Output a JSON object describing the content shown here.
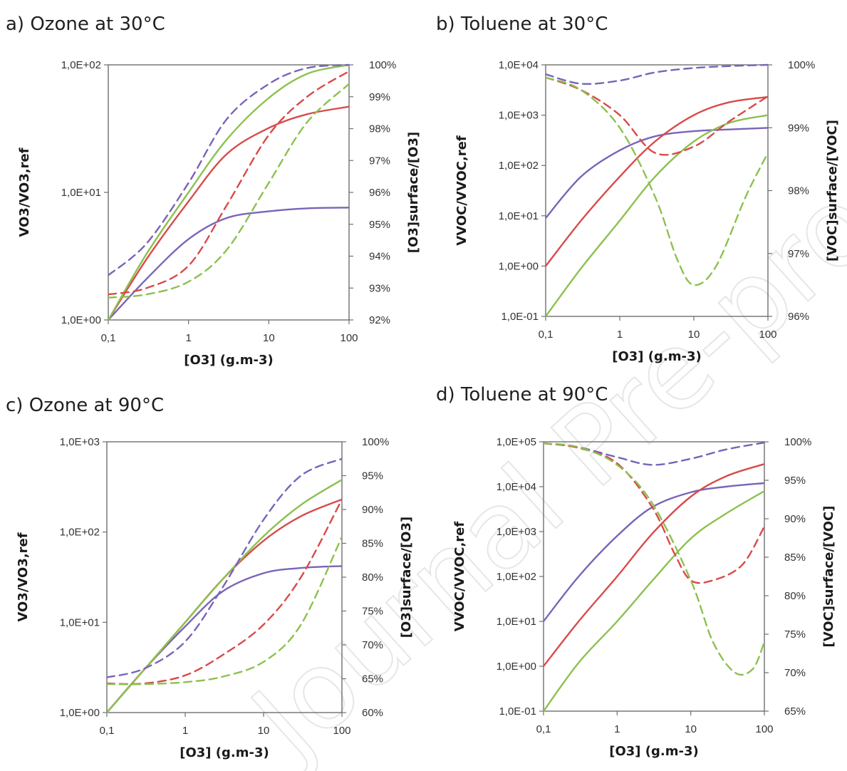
{
  "watermark": "Journal Pre-proof",
  "series_colors": {
    "purple": "#7a64b8",
    "red": "#d94a4a",
    "green": "#8cc14f"
  },
  "chart_data": [
    {
      "id": "a",
      "type": "line",
      "title": "a) Ozone at 30°C",
      "xlabel": "[O3] (g.m-3)",
      "ylabel_left": "VO3/VO3,ref",
      "ylabel_right": "[O3]surface/[O3]",
      "xscale": "log",
      "xlim": [
        0.1,
        100
      ],
      "xticks": [
        "0,1",
        "1",
        "10",
        "100"
      ],
      "yscale": "log",
      "ylim": [
        1,
        100
      ],
      "yticks": [
        "1,0E+00",
        "1,0E+01",
        "1,0E+02"
      ],
      "y2lim": [
        92,
        100
      ],
      "y2ticks": [
        "92%",
        "93%",
        "94%",
        "95%",
        "96%",
        "97%",
        "98%",
        "99%",
        "100%"
      ],
      "series": [
        {
          "color": "purple",
          "style": "solid",
          "axis": "left",
          "x": [
            0.1,
            0.3,
            1,
            3,
            10,
            30,
            100
          ],
          "y": [
            1.0,
            2.1,
            4.3,
            6.3,
            7.1,
            7.5,
            7.6
          ]
        },
        {
          "color": "red",
          "style": "solid",
          "axis": "left",
          "x": [
            0.1,
            0.3,
            1,
            3,
            10,
            30,
            100
          ],
          "y": [
            1.0,
            3.0,
            8.5,
            20,
            32,
            41,
            47
          ]
        },
        {
          "color": "green",
          "style": "solid",
          "axis": "left",
          "x": [
            0.1,
            0.3,
            1,
            3,
            10,
            30,
            100
          ],
          "y": [
            1.0,
            3.3,
            10,
            26,
            55,
            85,
            100
          ]
        },
        {
          "color": "purple",
          "style": "dashed",
          "axis": "right",
          "x": [
            0.1,
            0.3,
            1,
            3,
            10,
            30,
            100
          ],
          "y": [
            93.4,
            94.4,
            96.3,
            98.3,
            99.4,
            99.9,
            100
          ]
        },
        {
          "color": "red",
          "style": "dashed",
          "axis": "right",
          "x": [
            0.1,
            0.3,
            1,
            3,
            10,
            30,
            100
          ],
          "y": [
            92.8,
            93.0,
            93.7,
            95.6,
            97.8,
            99.0,
            99.8
          ]
        },
        {
          "color": "green",
          "style": "dashed",
          "axis": "right",
          "x": [
            0.1,
            0.3,
            1,
            3,
            10,
            30,
            100
          ],
          "y": [
            92.7,
            92.8,
            93.2,
            94.2,
            96.3,
            98.2,
            99.4
          ]
        }
      ]
    },
    {
      "id": "b",
      "type": "line",
      "title": "b) Toluene at 30°C",
      "xlabel": "[O3] (g.m-3)",
      "ylabel_left": "VVOC/VVOC,ref",
      "ylabel_right": "[VOC]surface/[VOC]",
      "xscale": "log",
      "xlim": [
        0.1,
        100
      ],
      "xticks": [
        "0,1",
        "1",
        "10",
        "100"
      ],
      "yscale": "log",
      "ylim": [
        0.1,
        10000
      ],
      "yticks": [
        "1,0E-01",
        "1,0E+00",
        "1,0E+01",
        "1,0E+02",
        "1,0E+03",
        "1,0E+04"
      ],
      "y2lim": [
        96,
        100
      ],
      "y2ticks": [
        "96%",
        "97%",
        "98%",
        "99%",
        "100%"
      ],
      "series": [
        {
          "color": "purple",
          "style": "solid",
          "axis": "left",
          "x": [
            0.1,
            0.3,
            1,
            3,
            10,
            30,
            100
          ],
          "y": [
            9,
            60,
            200,
            380,
            480,
            520,
            560
          ]
        },
        {
          "color": "red",
          "style": "solid",
          "axis": "left",
          "x": [
            0.1,
            0.3,
            1,
            3,
            10,
            30,
            100
          ],
          "y": [
            1.0,
            8,
            60,
            300,
            1000,
            1800,
            2300
          ]
        },
        {
          "color": "green",
          "style": "solid",
          "axis": "left",
          "x": [
            0.1,
            0.3,
            1,
            3,
            10,
            30,
            100
          ],
          "y": [
            0.1,
            0.9,
            8,
            60,
            300,
            700,
            1000
          ]
        },
        {
          "color": "purple",
          "style": "dashed",
          "axis": "right",
          "x": [
            0.1,
            0.3,
            1,
            3,
            10,
            30,
            100
          ],
          "y": [
            99.85,
            99.7,
            99.75,
            99.88,
            99.95,
            99.98,
            100
          ]
        },
        {
          "color": "red",
          "style": "dashed",
          "axis": "right",
          "x": [
            0.1,
            0.3,
            1,
            3,
            10,
            30,
            100
          ],
          "y": [
            99.8,
            99.6,
            99.2,
            98.6,
            98.7,
            99.1,
            99.5
          ]
        },
        {
          "color": "green",
          "style": "dashed",
          "axis": "right",
          "x": [
            0.1,
            0.3,
            1,
            3,
            6,
            10,
            20,
            50,
            100
          ],
          "y": [
            99.8,
            99.6,
            99.0,
            97.9,
            96.9,
            96.5,
            96.8,
            97.9,
            98.6
          ]
        }
      ]
    },
    {
      "id": "c",
      "type": "line",
      "title": "c) Ozone at 90°C",
      "xlabel": "[O3] (g.m-3)",
      "ylabel_left": "VO3/VO3,ref",
      "ylabel_right": "[O3]surface/[O3]",
      "xscale": "log",
      "xlim": [
        0.1,
        100
      ],
      "xticks": [
        "0,1",
        "1",
        "10",
        "100"
      ],
      "yscale": "log",
      "ylim": [
        1,
        1000
      ],
      "yticks": [
        "1,0E+00",
        "1,0E+01",
        "1,0E+02",
        "1,0E+03"
      ],
      "y2lim": [
        60,
        100
      ],
      "y2ticks": [
        "60%",
        "65%",
        "70%",
        "75%",
        "80%",
        "85%",
        "90%",
        "95%",
        "100%"
      ],
      "series": [
        {
          "color": "purple",
          "style": "solid",
          "axis": "left",
          "x": [
            0.1,
            0.3,
            1,
            3,
            10,
            30,
            100
          ],
          "y": [
            1.0,
            3,
            9,
            22,
            35,
            40,
            42
          ]
        },
        {
          "color": "red",
          "style": "solid",
          "axis": "left",
          "x": [
            0.1,
            0.3,
            1,
            3,
            10,
            30,
            100
          ],
          "y": [
            1.0,
            3,
            10,
            30,
            80,
            150,
            230
          ]
        },
        {
          "color": "green",
          "style": "solid",
          "axis": "left",
          "x": [
            0.1,
            0.3,
            1,
            3,
            10,
            30,
            100
          ],
          "y": [
            1.0,
            3,
            10,
            30,
            90,
            200,
            380
          ]
        },
        {
          "color": "purple",
          "style": "dashed",
          "axis": "right",
          "x": [
            0.1,
            0.3,
            1,
            3,
            10,
            30,
            100
          ],
          "y": [
            65.2,
            66.5,
            70.5,
            78.5,
            88.5,
            95,
            97.5
          ]
        },
        {
          "color": "red",
          "style": "dashed",
          "axis": "right",
          "x": [
            0.1,
            0.3,
            1,
            3,
            10,
            30,
            100
          ],
          "y": [
            64.3,
            64.3,
            65.5,
            68.5,
            73,
            80,
            91.5
          ]
        },
        {
          "color": "green",
          "style": "dashed",
          "axis": "right",
          "x": [
            0.1,
            0.3,
            1,
            3,
            10,
            30,
            100
          ],
          "y": [
            64.2,
            64.2,
            64.5,
            65.3,
            67.5,
            73,
            86
          ]
        }
      ]
    },
    {
      "id": "d",
      "type": "line",
      "title": "d) Toluene at 90°C",
      "xlabel": "[O3] (g.m-3)",
      "ylabel_left": "VVOC/VVOC,ref",
      "ylabel_right": "[VOC]surface/[VOC]",
      "xscale": "log",
      "xlim": [
        0.1,
        100
      ],
      "xticks": [
        "0,1",
        "1",
        "10",
        "100"
      ],
      "yscale": "log",
      "ylim": [
        0.1,
        100000
      ],
      "yticks": [
        "1,0E-01",
        "1,0E+00",
        "1,0E+01",
        "1,0E+02",
        "1,0E+03",
        "1,0E+04",
        "1,0E+05"
      ],
      "y2lim": [
        65,
        100
      ],
      "y2ticks": [
        "65%",
        "70%",
        "75%",
        "80%",
        "85%",
        "90%",
        "95%",
        "100%"
      ],
      "series": [
        {
          "color": "purple",
          "style": "solid",
          "axis": "left",
          "x": [
            0.1,
            0.3,
            1,
            3,
            10,
            30,
            100
          ],
          "y": [
            10,
            100,
            800,
            3500,
            7500,
            10000,
            12000
          ]
        },
        {
          "color": "red",
          "style": "solid",
          "axis": "left",
          "x": [
            0.1,
            0.3,
            1,
            3,
            10,
            30,
            100
          ],
          "y": [
            1.0,
            10,
            100,
            900,
            6000,
            17000,
            32000
          ]
        },
        {
          "color": "green",
          "style": "solid",
          "axis": "left",
          "x": [
            0.1,
            0.3,
            1,
            3,
            10,
            30,
            100
          ],
          "y": [
            0.1,
            1.2,
            10,
            80,
            700,
            2500,
            8000
          ]
        },
        {
          "color": "purple",
          "style": "dashed",
          "axis": "right",
          "x": [
            0.1,
            0.3,
            1,
            3,
            10,
            30,
            100
          ],
          "y": [
            99.8,
            99.3,
            98.0,
            97.0,
            97.8,
            99.0,
            99.9
          ]
        },
        {
          "color": "red",
          "style": "dashed",
          "axis": "right",
          "x": [
            0.1,
            0.3,
            1,
            3,
            6,
            10,
            20,
            50,
            100
          ],
          "y": [
            99.8,
            99.2,
            97.2,
            91.5,
            85.5,
            82,
            82,
            84,
            89
          ]
        },
        {
          "color": "green",
          "style": "dashed",
          "axis": "right",
          "x": [
            0.1,
            0.3,
            1,
            3,
            10,
            20,
            40,
            70,
            100
          ],
          "y": [
            99.8,
            99.3,
            97,
            92,
            82,
            74,
            70,
            70.5,
            74
          ]
        }
      ]
    }
  ]
}
